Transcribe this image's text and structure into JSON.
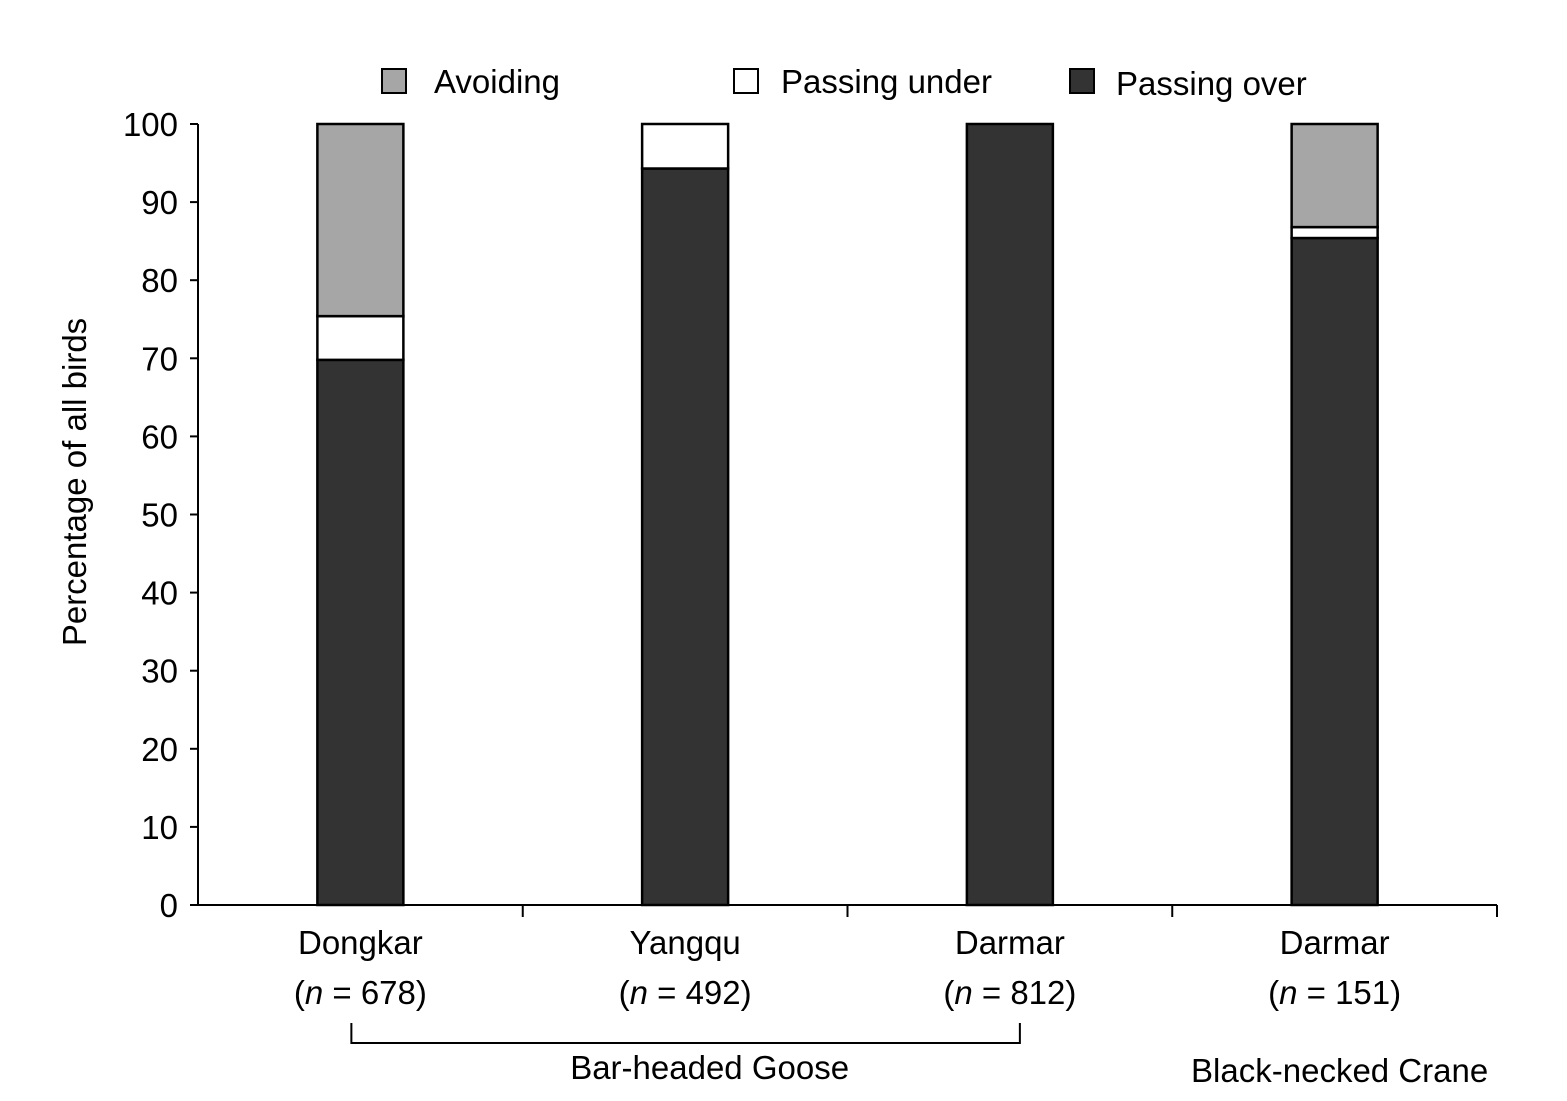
{
  "chart_data": {
    "type": "bar",
    "stacked": true,
    "ylabel": "Percentage of all birds",
    "xlabel": "",
    "ylim": [
      0,
      100
    ],
    "yticks": [
      0,
      10,
      20,
      30,
      40,
      50,
      60,
      70,
      80,
      90,
      100
    ],
    "grid": false,
    "legend_position": "top",
    "categories": [
      {
        "name": "Dongkar",
        "n_label": "678"
      },
      {
        "name": "Yangqu",
        "n_label": "492"
      },
      {
        "name": "Darmar",
        "n_label": "812"
      },
      {
        "name": "Darmar",
        "n_label": "151"
      }
    ],
    "series": [
      {
        "name": "Passing over",
        "color": "#333333",
        "values": [
          69.8,
          94.3,
          100,
          85.4
        ]
      },
      {
        "name": "Passing under",
        "color": "#ffffff",
        "values": [
          5.6,
          5.7,
          0,
          1.4
        ]
      },
      {
        "name": "Avoiding",
        "color": "#a6a6a6",
        "values": [
          24.6,
          0,
          0,
          13.2
        ]
      }
    ],
    "legend_order": [
      "Avoiding",
      "Passing under",
      "Passing over"
    ],
    "groups": [
      {
        "label": "Bar-headed Goose",
        "categories": [
          0,
          1,
          2
        ],
        "bracket": true
      },
      {
        "label": "Black-necked Crane",
        "categories": [
          3
        ],
        "bracket": false
      }
    ],
    "n_prefix": "n",
    "n_equals": " = "
  }
}
